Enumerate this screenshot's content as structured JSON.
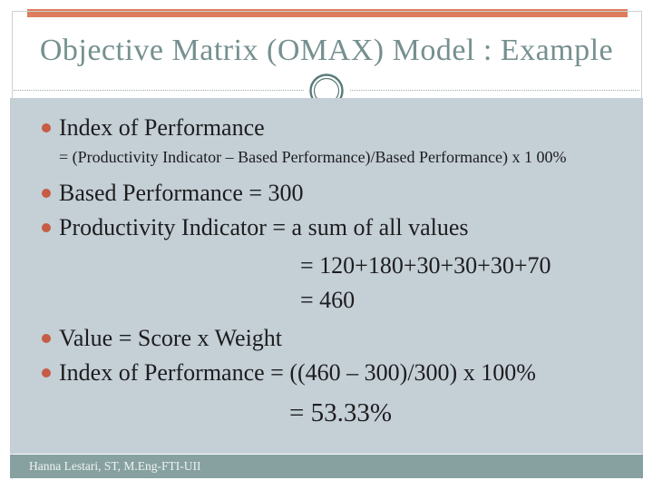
{
  "header": {
    "title": "Objective Matrix (OMAX) Model : Example"
  },
  "content": {
    "items": [
      {
        "style": "bullet",
        "text": "Index of Performance"
      },
      {
        "style": "sub",
        "text": "= (Productivity Indicator – Based Performance)/Based Performance) x 1 00%"
      },
      {
        "style": "bullet mt8",
        "text": "Based Performance = 300"
      },
      {
        "style": "bullet",
        "text": "Productivity Indicator = a sum of all values"
      },
      {
        "style": "indent mt4",
        "text": "= 120+180+30+30+30+70"
      },
      {
        "style": "indent",
        "text": "= 460"
      },
      {
        "style": "bullet mt4",
        "text": "Value = Score x Weight"
      },
      {
        "style": "bullet",
        "text": "Index of Performance = ((460 – 300)/300) x 100%"
      },
      {
        "style": "indent-big",
        "text": "= 53.33%"
      }
    ]
  },
  "footer": {
    "credit": "Hanna Lestari, ST, M.Eng-FTI-UII"
  },
  "ornaments": {
    "divider_circle": "double-ring-circle"
  },
  "colors": {
    "top_bar": "#dd7d5d",
    "content_bg": "#c4cfd6",
    "bullet": "#c75b44",
    "footer_bar": "#87a1a1",
    "title_text": "#75908f",
    "body_text": "#1d1d1f",
    "ring": "#597a79",
    "frame_border": "#c9d2d4"
  }
}
